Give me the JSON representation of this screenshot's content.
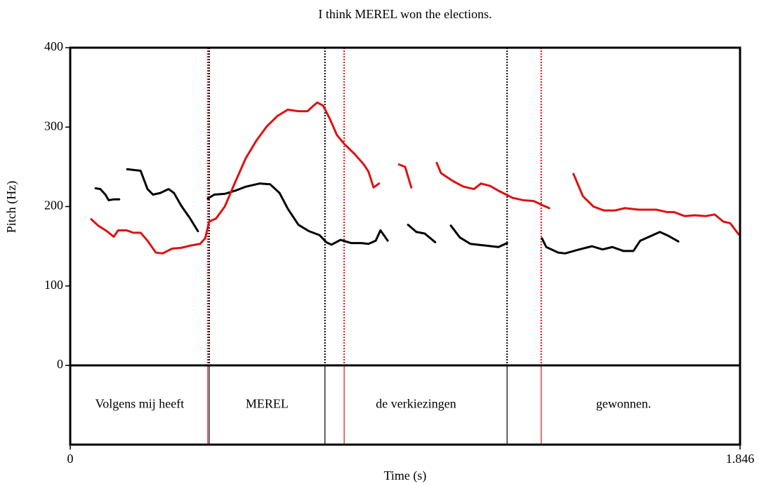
{
  "chart_data": {
    "type": "line",
    "title": "I think MEREL won the elections.",
    "xlabel": "Time (s)",
    "ylabel": "Pitch (Hz)",
    "xlim": [
      0,
      1.846
    ],
    "xticks": [
      0,
      1.846
    ],
    "ylim": [
      0,
      400
    ],
    "yticks": [
      0,
      100,
      200,
      300,
      400
    ],
    "series": [
      {
        "color": "#000000",
        "x": [
          0.07,
          0.083,
          0.097,
          0.106,
          0.12,
          0.135,
          null,
          0.157,
          0.194,
          0.213,
          0.228,
          0.248,
          0.271,
          0.286,
          0.306,
          0.329,
          0.352,
          null,
          0.379,
          0.397,
          0.426,
          0.455,
          0.484,
          0.522,
          0.551,
          0.577,
          0.6,
          0.629,
          0.658,
          0.687,
          0.706,
          0.72,
          0.745,
          0.774,
          0.803,
          0.822,
          0.842,
          0.855,
          0.875,
          null,
          0.931,
          0.954,
          0.977,
          1.006,
          null,
          1.049,
          1.074,
          1.103,
          1.142,
          1.18,
          1.204,
          null,
          1.3,
          1.312,
          1.345,
          1.364,
          1.403,
          1.438,
          1.467,
          1.494,
          1.525,
          1.552,
          1.571,
          1.596,
          1.625,
          1.649,
          1.676
        ],
        "values": [
          223,
          222,
          215,
          208,
          209,
          209,
          null,
          247,
          245,
          222,
          215,
          217,
          222,
          217,
          201,
          186,
          169,
          null,
          210,
          215,
          216,
          220,
          225,
          229,
          228,
          217,
          197,
          177,
          169,
          164,
          155,
          152,
          158,
          154,
          154,
          153,
          157,
          170,
          157,
          null,
          177,
          168,
          166,
          155,
          null,
          176,
          161,
          153,
          151,
          149,
          154,
          null,
          160,
          149,
          142,
          141,
          146,
          150,
          146,
          149,
          144,
          144,
          157,
          162,
          168,
          163,
          156
        ]
      },
      {
        "color": "#dd1111",
        "x": [
          0.058,
          0.077,
          0.101,
          0.12,
          0.132,
          0.155,
          0.174,
          0.194,
          0.213,
          0.236,
          0.255,
          0.281,
          0.306,
          0.333,
          0.358,
          0.372,
          0.383,
          0.402,
          0.426,
          0.455,
          0.484,
          0.513,
          0.542,
          0.571,
          0.6,
          0.629,
          0.654,
          0.668,
          0.681,
          0.697,
          0.716,
          0.735,
          0.755,
          0.784,
          0.809,
          0.822,
          0.836,
          0.851,
          null,
          0.906,
          0.923,
          0.94,
          null,
          1.01,
          1.022,
          1.055,
          1.084,
          1.113,
          1.132,
          1.157,
          1.18,
          1.219,
          1.248,
          1.277,
          1.3,
          1.32,
          null,
          1.387,
          1.413,
          1.442,
          1.471,
          1.5,
          1.529,
          1.567,
          1.616,
          1.645,
          1.664,
          1.693,
          1.722,
          1.751,
          1.776,
          1.8,
          1.819,
          1.842
        ],
        "values": [
          184,
          176,
          169,
          162,
          170,
          170,
          167,
          167,
          157,
          142,
          141,
          147,
          148,
          151,
          153,
          160,
          181,
          185,
          200,
          231,
          261,
          283,
          301,
          314,
          322,
          320,
          320,
          326,
          331,
          327,
          310,
          290,
          279,
          266,
          253,
          244,
          224,
          229,
          null,
          253,
          250,
          224,
          null,
          255,
          242,
          232,
          225,
          222,
          229,
          226,
          220,
          211,
          208,
          207,
          202,
          198,
          null,
          241,
          213,
          200,
          195,
          195,
          198,
          196,
          196,
          193,
          193,
          188,
          189,
          188,
          190,
          181,
          179,
          165
        ]
      }
    ],
    "boundaries": [
      {
        "color": "#000000",
        "values": [
          0,
          0.383,
          0.702,
          1.204
        ]
      },
      {
        "color": "#dd1111",
        "values": [
          0.379,
          0.755,
          1.298
        ]
      }
    ],
    "tier": [
      {
        "text": "Volgens mij heeft",
        "xmin": 0,
        "xmax": 0.383
      },
      {
        "text": "MEREL",
        "xmin": 0.383,
        "xmax": 0.702
      },
      {
        "text": "de verkiezingen",
        "xmin": 0.702,
        "xmax": 1.204
      },
      {
        "text": "gewonnen.",
        "xmin": 1.204,
        "xmax": 1.846
      }
    ]
  }
}
